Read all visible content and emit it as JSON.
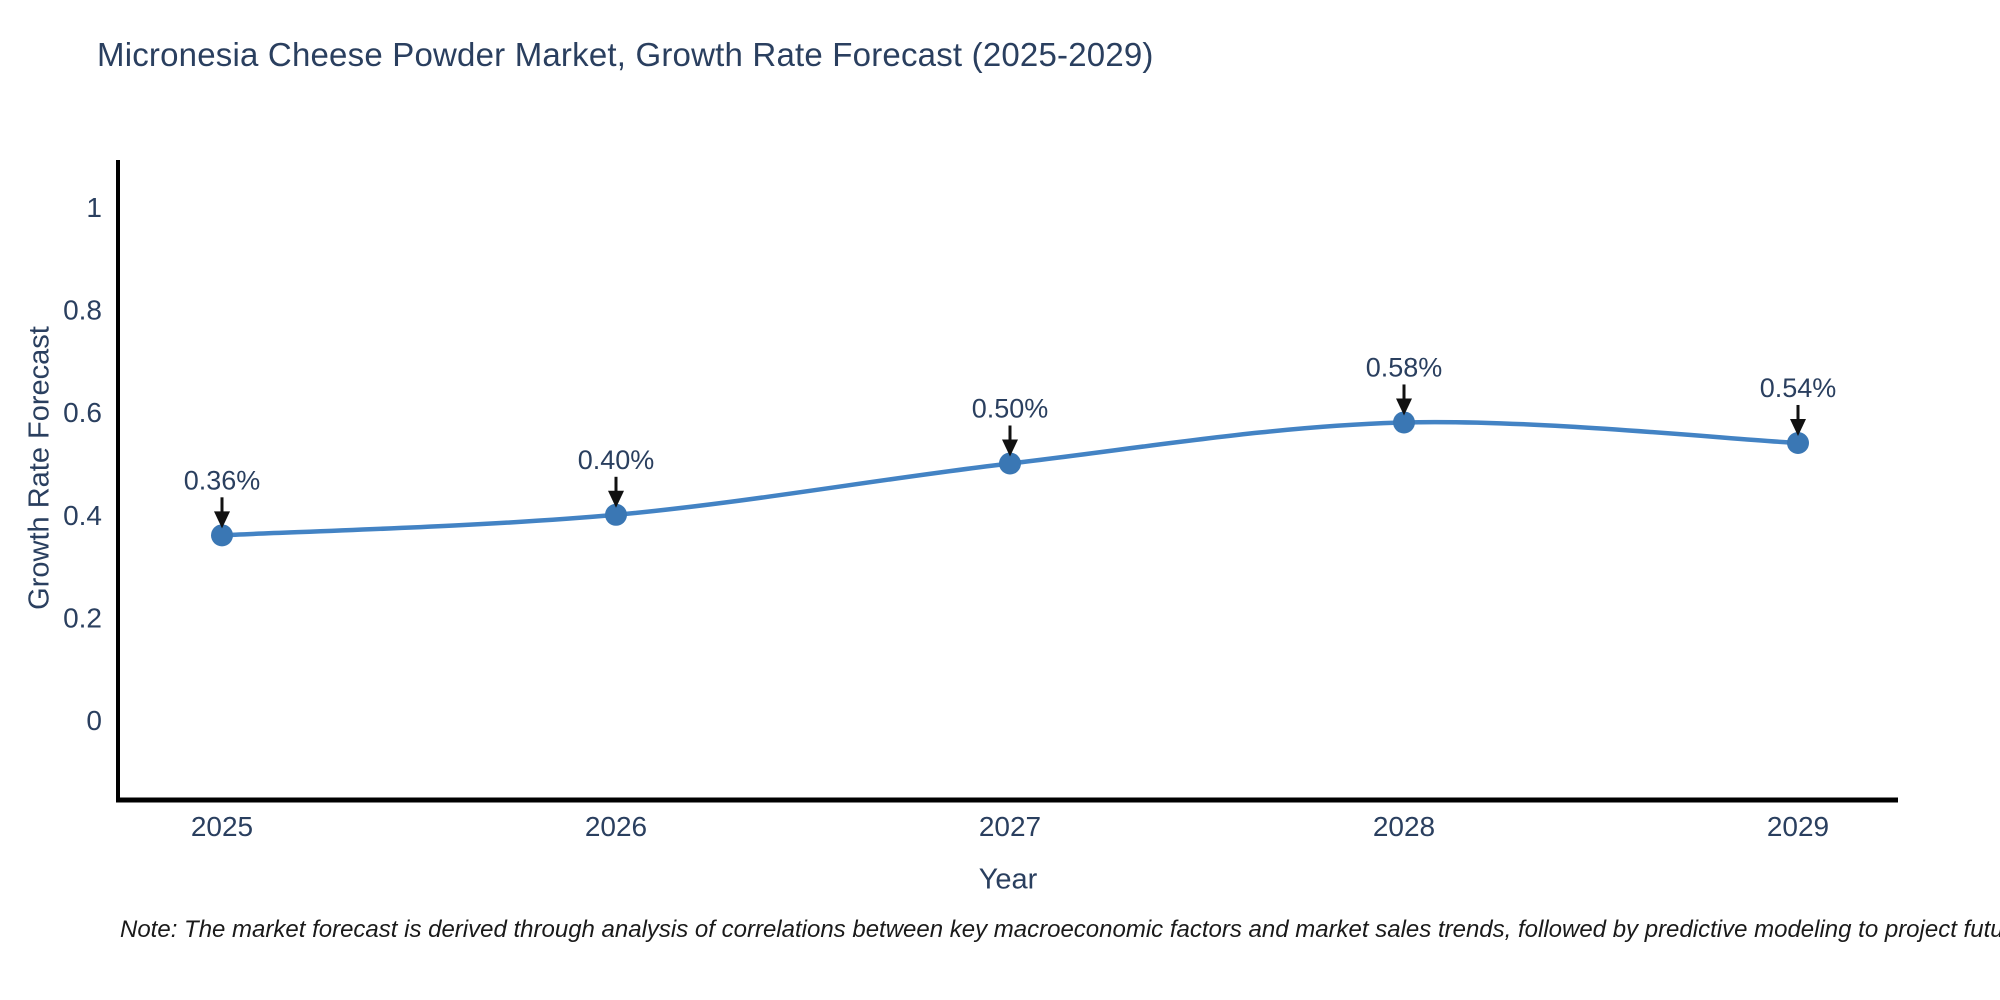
{
  "page": {
    "background": "#ffffff"
  },
  "header": {
    "title": "Micronesia Cheese Powder Market, Growth Rate Forecast (2025-2029)"
  },
  "footer": {
    "note": "Note: The market forecast is derived through analysis of correlations between key macroeconomic factors and market sales trends, followed by predictive modeling to project future sales"
  },
  "chart_data": {
    "type": "line",
    "title": "Micronesia Cheese Powder Market, Growth Rate Forecast (2025-2029)",
    "xlabel": "Year",
    "ylabel": "Growth Rate Forecast",
    "categories": [
      "2025",
      "2026",
      "2027",
      "2028",
      "2029"
    ],
    "series": [
      {
        "name": "Growth Rate Forecast",
        "values": [
          0.36,
          0.4,
          0.5,
          0.58,
          0.54
        ]
      }
    ],
    "point_labels": [
      "0.36%",
      "0.40%",
      "0.50%",
      "0.58%",
      "0.54%"
    ],
    "y_ticks": [
      {
        "label": "1",
        "value": 1.0
      },
      {
        "label": "0.8",
        "value": 0.8
      },
      {
        "label": "0.6",
        "value": 0.6
      },
      {
        "label": "0.4",
        "value": 0.4
      },
      {
        "label": "0.2",
        "value": 0.2
      },
      {
        "label": "0",
        "value": 0.0
      }
    ],
    "ylim": [
      -0.156,
      1.09
    ],
    "grid": false,
    "legend": "none",
    "line_shape": "spline",
    "annotation_style": "black-down-arrow",
    "colors": {
      "line": "#4383c4",
      "marker": "#3a77b4",
      "axis": "#000000",
      "tick_text": "#2a3f5f",
      "annotation_text": "#2a3f5f",
      "arrow": "#111111"
    }
  }
}
